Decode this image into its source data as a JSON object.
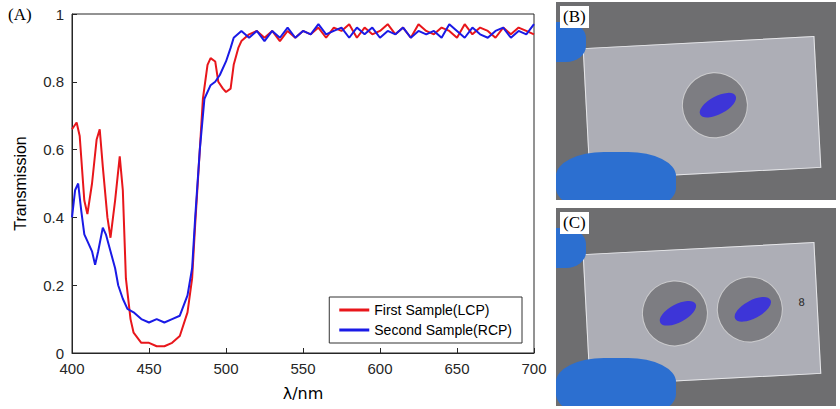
{
  "chart_data": {
    "type": "line",
    "panel": "(A)",
    "x_label": "λ/nm",
    "y_label": "Transmission",
    "xlim": [
      400,
      700
    ],
    "xticks": [
      400,
      450,
      500,
      550,
      600,
      650,
      700
    ],
    "ylim": [
      0,
      1
    ],
    "yticks": [
      0,
      0.2,
      0.4,
      0.6,
      0.8,
      1
    ],
    "grid": false,
    "legend": "lower right",
    "series": [
      {
        "name": "First Sample(LCP)",
        "color": "#e8161b",
        "x": [
          400,
          403,
          405,
          408,
          410,
          413,
          416,
          418,
          420,
          423,
          425,
          428,
          431,
          433,
          435,
          438,
          440,
          445,
          450,
          455,
          460,
          465,
          470,
          475,
          478,
          480,
          483,
          485,
          488,
          490,
          493,
          495,
          498,
          500,
          503,
          505,
          508,
          510,
          515,
          520,
          525,
          530,
          535,
          540,
          545,
          550,
          555,
          560,
          565,
          570,
          575,
          580,
          585,
          590,
          595,
          600,
          605,
          610,
          615,
          620,
          625,
          630,
          635,
          640,
          645,
          650,
          655,
          660,
          665,
          670,
          675,
          680,
          685,
          690,
          695,
          700
        ],
        "values": [
          0.66,
          0.68,
          0.64,
          0.45,
          0.41,
          0.5,
          0.63,
          0.66,
          0.55,
          0.4,
          0.34,
          0.45,
          0.58,
          0.48,
          0.22,
          0.1,
          0.06,
          0.03,
          0.03,
          0.02,
          0.02,
          0.03,
          0.05,
          0.12,
          0.22,
          0.38,
          0.6,
          0.75,
          0.85,
          0.87,
          0.86,
          0.8,
          0.78,
          0.77,
          0.78,
          0.85,
          0.9,
          0.92,
          0.94,
          0.95,
          0.93,
          0.95,
          0.92,
          0.95,
          0.93,
          0.95,
          0.94,
          0.96,
          0.93,
          0.96,
          0.95,
          0.97,
          0.93,
          0.96,
          0.94,
          0.95,
          0.97,
          0.94,
          0.96,
          0.93,
          0.97,
          0.95,
          0.94,
          0.96,
          0.95,
          0.93,
          0.97,
          0.94,
          0.96,
          0.95,
          0.93,
          0.96,
          0.94,
          0.96,
          0.95,
          0.94
        ]
      },
      {
        "name": "Second Sample(RCP)",
        "color": "#1a1ae6",
        "x": [
          400,
          402,
          404,
          406,
          408,
          410,
          413,
          415,
          417,
          420,
          422,
          425,
          428,
          430,
          433,
          436,
          440,
          445,
          450,
          455,
          460,
          465,
          470,
          475,
          478,
          480,
          483,
          486,
          490,
          493,
          496,
          500,
          503,
          505,
          510,
          515,
          520,
          525,
          530,
          535,
          540,
          545,
          550,
          555,
          560,
          565,
          570,
          575,
          580,
          585,
          590,
          595,
          600,
          605,
          610,
          615,
          620,
          625,
          630,
          635,
          640,
          645,
          650,
          655,
          660,
          665,
          670,
          675,
          680,
          685,
          690,
          695,
          700
        ],
        "values": [
          0.4,
          0.48,
          0.5,
          0.42,
          0.35,
          0.33,
          0.3,
          0.26,
          0.3,
          0.37,
          0.35,
          0.3,
          0.25,
          0.2,
          0.16,
          0.13,
          0.12,
          0.1,
          0.09,
          0.1,
          0.09,
          0.1,
          0.11,
          0.17,
          0.25,
          0.4,
          0.6,
          0.75,
          0.79,
          0.8,
          0.82,
          0.86,
          0.9,
          0.93,
          0.95,
          0.93,
          0.95,
          0.92,
          0.95,
          0.93,
          0.96,
          0.93,
          0.95,
          0.94,
          0.97,
          0.94,
          0.95,
          0.96,
          0.93,
          0.96,
          0.94,
          0.96,
          0.93,
          0.95,
          0.94,
          0.96,
          0.93,
          0.95,
          0.94,
          0.95,
          0.93,
          0.97,
          0.95,
          0.93,
          0.96,
          0.94,
          0.93,
          0.95,
          0.96,
          0.93,
          0.95,
          0.94,
          0.97
        ]
      }
    ]
  },
  "photos": [
    {
      "panel": "(B)"
    },
    {
      "panel": "(C)",
      "marking": "8"
    }
  ]
}
